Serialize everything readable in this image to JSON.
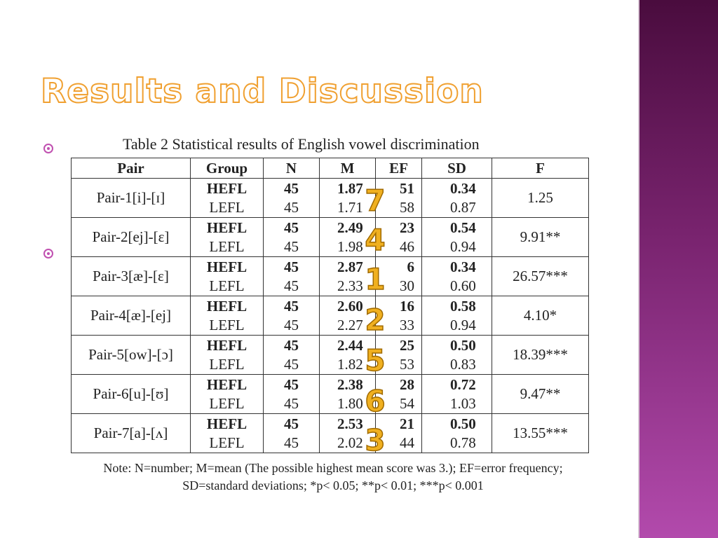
{
  "title": "Results and Discussion",
  "table": {
    "caption": "Table 2 Statistical results of English vowel discrimination",
    "headers": [
      "Pair",
      "Group",
      "N",
      "M",
      "EF",
      "SD",
      "F"
    ],
    "rows": [
      {
        "pair": "Pair-1[i]-[ɪ]",
        "hefl": {
          "group": "HEFL",
          "n": "45",
          "m": "1.87",
          "ef": "51",
          "sd": "0.34"
        },
        "lefl": {
          "group": "LEFL",
          "n": "45",
          "m": "1.71",
          "ef": "58",
          "sd": "0.87"
        },
        "f": "1.25",
        "rank": "7"
      },
      {
        "pair": "Pair-2[ej]-[ɛ]",
        "hefl": {
          "group": "HEFL",
          "n": "45",
          "m": "2.49",
          "ef": "23",
          "sd": "0.54"
        },
        "lefl": {
          "group": "LEFL",
          "n": "45",
          "m": "1.98",
          "ef": "46",
          "sd": "0.94"
        },
        "f": "9.91**",
        "rank": "4"
      },
      {
        "pair": "Pair-3[æ]-[ɛ]",
        "hefl": {
          "group": "HEFL",
          "n": "45",
          "m": "2.87",
          "ef": "6",
          "sd": "0.34"
        },
        "lefl": {
          "group": "LEFL",
          "n": "45",
          "m": "2.33",
          "ef": "30",
          "sd": "0.60"
        },
        "f": "26.57***",
        "rank": "1"
      },
      {
        "pair": "Pair-4[æ]-[ej]",
        "hefl": {
          "group": "HEFL",
          "n": "45",
          "m": "2.60",
          "ef": "16",
          "sd": "0.58"
        },
        "lefl": {
          "group": "LEFL",
          "n": "45",
          "m": "2.27",
          "ef": "33",
          "sd": "0.94"
        },
        "f": "4.10*",
        "rank": "2"
      },
      {
        "pair": "Pair-5[ow]-[ɔ]",
        "hefl": {
          "group": "HEFL",
          "n": "45",
          "m": "2.44",
          "ef": "25",
          "sd": "0.50"
        },
        "lefl": {
          "group": "LEFL",
          "n": "45",
          "m": "1.82",
          "ef": "53",
          "sd": "0.83"
        },
        "f": "18.39***",
        "rank": "5"
      },
      {
        "pair": "Pair-6[u]-[ʊ]",
        "hefl": {
          "group": "HEFL",
          "n": "45",
          "m": "2.38",
          "ef": "28",
          "sd": "0.72"
        },
        "lefl": {
          "group": "LEFL",
          "n": "45",
          "m": "1.80",
          "ef": "54",
          "sd": "1.03"
        },
        "f": "9.47**",
        "rank": "6"
      },
      {
        "pair": "Pair-7[a]-[ʌ]",
        "hefl": {
          "group": "HEFL",
          "n": "45",
          "m": "2.53",
          "ef": "21",
          "sd": "0.50"
        },
        "lefl": {
          "group": "LEFL",
          "n": "45",
          "m": "2.02",
          "ef": "44",
          "sd": "0.78"
        },
        "f": "13.55***",
        "rank": "3"
      }
    ],
    "note_line1": "Note: N=number; M=mean (The possible highest mean score was 3.); EF=error frequency;",
    "note_line2": "SD=standard deviations; *p< 0.05; **p< 0.01; ***p< 0.001"
  },
  "colors": {
    "title_outline": "#f0a030",
    "rank_digits": "#f0b020",
    "bullet": "#c050b0",
    "sidebar": "#7a2470"
  }
}
